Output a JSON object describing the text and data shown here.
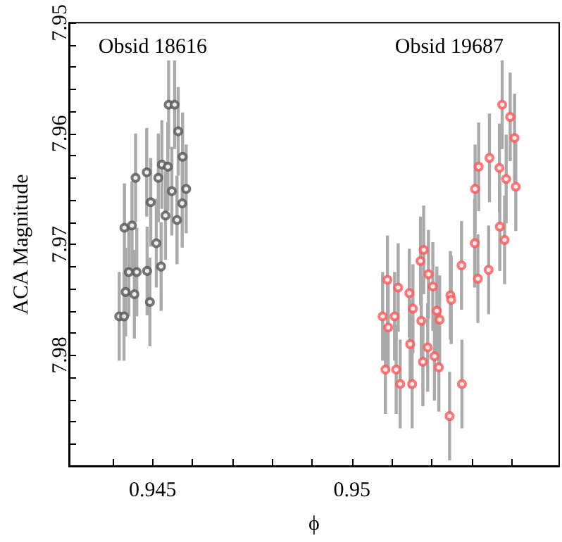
{
  "chart_data": {
    "type": "scatter",
    "xlabel": "ϕ",
    "ylabel": "ACA Magnitude",
    "xlim": [
      0.9429,
      0.9552
    ],
    "ylim": [
      7.99,
      7.95
    ],
    "xticks": [
      {
        "value": 0.944,
        "label": null
      },
      0.945,
      {
        "value": 0.946,
        "label": null
      },
      {
        "value": 0.947,
        "label": null
      },
      {
        "value": 0.948,
        "label": null
      },
      {
        "value": 0.949,
        "label": null
      },
      0.95,
      {
        "value": 0.951,
        "label": null
      },
      {
        "value": 0.952,
        "label": null
      },
      {
        "value": 0.953,
        "label": null
      },
      {
        "value": 0.954,
        "label": null
      }
    ],
    "yticks": [
      7.95,
      {
        "value": 7.952,
        "label": null
      },
      {
        "value": 7.954,
        "label": null
      },
      {
        "value": 7.956,
        "label": null
      },
      {
        "value": 7.958,
        "label": null
      },
      7.96,
      {
        "value": 7.962,
        "label": null
      },
      {
        "value": 7.964,
        "label": null
      },
      {
        "value": 7.966,
        "label": null
      },
      {
        "value": 7.968,
        "label": null
      },
      7.97,
      {
        "value": 7.972,
        "label": null
      },
      {
        "value": 7.974,
        "label": null
      },
      {
        "value": 7.976,
        "label": null
      },
      {
        "value": 7.978,
        "label": null
      },
      7.98,
      {
        "value": 7.982,
        "label": null
      },
      {
        "value": 7.984,
        "label": null
      },
      {
        "value": 7.986,
        "label": null
      },
      {
        "value": 7.988,
        "label": null
      }
    ],
    "marker": "circle",
    "legend": false,
    "grid": false,
    "series": [
      {
        "name": "Obsid 18616",
        "color": "#555555",
        "x": [
          0.94416,
          0.94428,
          0.94432,
          0.94429,
          0.94448,
          0.9444,
          0.94454,
          0.9446,
          0.94457,
          0.94485,
          0.94486,
          0.94493,
          0.94495,
          0.94509,
          0.94514,
          0.94521,
          0.94523,
          0.94532,
          0.94538,
          0.9454,
          0.94548,
          0.94555,
          0.94561,
          0.94564,
          0.94574,
          0.94575,
          0.94584
        ],
        "values": [
          7.9765,
          7.9765,
          7.9743,
          7.9685,
          7.9683,
          7.9725,
          7.9745,
          7.9725,
          7.964,
          7.9635,
          7.9724,
          7.9752,
          7.9662,
          7.9699,
          7.964,
          7.972,
          7.9628,
          7.9674,
          7.963,
          7.9574,
          7.9652,
          7.9574,
          7.9678,
          7.9598,
          7.9663,
          7.9621,
          7.965
        ],
        "errors": [
          0.004,
          0.004,
          0.004,
          0.004,
          0.004,
          0.004,
          0.004,
          0.004,
          0.004,
          0.004,
          0.004,
          0.004,
          0.004,
          0.004,
          0.004,
          0.004,
          0.004,
          0.004,
          0.004,
          0.004,
          0.004,
          0.004,
          0.004,
          0.004,
          0.004,
          0.004,
          0.004
        ]
      },
      {
        "name": "Obsid 19687",
        "color": "#ff5555",
        "x": [
          0.95077,
          0.95084,
          0.95089,
          0.95091,
          0.95107,
          0.95111,
          0.95116,
          0.95121,
          0.95144,
          0.95146,
          0.95151,
          0.95153,
          0.95172,
          0.95174,
          0.95178,
          0.9518,
          0.9519,
          0.95192,
          0.95203,
          0.95207,
          0.95213,
          0.95218,
          0.9522,
          0.95247,
          0.95249,
          0.95245,
          0.95275,
          0.95276,
          0.95308,
          0.95309,
          0.95316,
          0.95318,
          0.95343,
          0.95345,
          0.9537,
          0.95371,
          0.95377,
          0.95383,
          0.95387,
          0.95397,
          0.95408,
          0.95411
        ],
        "values": [
          7.9765,
          7.9813,
          7.9732,
          7.9775,
          7.9765,
          7.9813,
          7.9739,
          7.9826,
          7.9744,
          7.979,
          7.9826,
          7.9758,
          7.9715,
          7.9769,
          7.9806,
          7.9705,
          7.9793,
          7.9727,
          7.9738,
          7.9801,
          7.976,
          7.9811,
          7.9768,
          7.9746,
          7.975,
          7.9855,
          7.9719,
          7.9826,
          7.9699,
          7.965,
          7.9731,
          7.963,
          7.9723,
          7.9622,
          7.9631,
          7.9684,
          7.9574,
          7.9696,
          7.9641,
          7.9585,
          7.9604,
          7.9648
        ],
        "errors": [
          0.004,
          0.004,
          0.004,
          0.004,
          0.004,
          0.004,
          0.004,
          0.004,
          0.004,
          0.004,
          0.004,
          0.004,
          0.004,
          0.004,
          0.004,
          0.004,
          0.004,
          0.004,
          0.004,
          0.004,
          0.004,
          0.004,
          0.004,
          0.004,
          0.004,
          0.004,
          0.004,
          0.004,
          0.004,
          0.004,
          0.004,
          0.004,
          0.004,
          0.004,
          0.004,
          0.004,
          0.004,
          0.004,
          0.004,
          0.004,
          0.004,
          0.004
        ]
      }
    ]
  }
}
